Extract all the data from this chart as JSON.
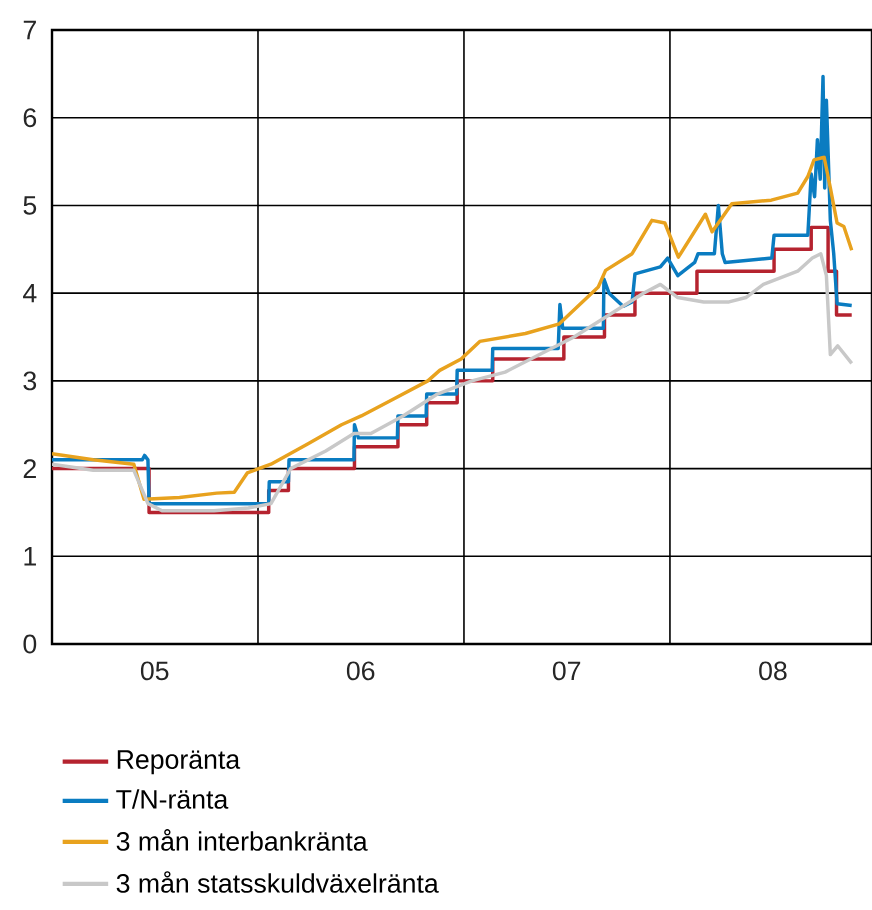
{
  "chart_data": {
    "type": "line",
    "xlim": [
      "2005-01-01",
      "2008-12-25"
    ],
    "xticks": [
      {
        "value": "2006-01-01",
        "label": null
      },
      {
        "value": "2007-01-01",
        "label": null
      },
      {
        "value": "2008-01-01",
        "label": null
      },
      {
        "value": "2005-07-02",
        "label": "05"
      },
      {
        "value": "2006-07-02",
        "label": "06"
      },
      {
        "value": "2007-07-02",
        "label": "07"
      },
      {
        "value": "2008-07-02",
        "label": "08"
      }
    ],
    "ylim": [
      0,
      7
    ],
    "yticks": [
      0,
      1,
      2,
      3,
      4,
      5,
      6,
      7
    ],
    "grid": true,
    "legend": "bottom",
    "marker": "none",
    "line_style": "solid",
    "series": [
      {
        "name": "Reporänta",
        "type": "step",
        "color": "#b5232f",
        "x": [
          "2005-01-01",
          "2005-06-22",
          "2006-01-20",
          "2006-02-24",
          "2006-06-21",
          "2006-09-06",
          "2006-10-27",
          "2006-12-20",
          "2007-02-21",
          "2007-06-27",
          "2007-09-07",
          "2007-10-31",
          "2008-02-18",
          "2008-07-04",
          "2008-09-08",
          "2008-10-08",
          "2008-10-23",
          "2008-11-19"
        ],
        "values": [
          2.0,
          1.5,
          1.75,
          2.0,
          2.25,
          2.5,
          2.75,
          3.0,
          3.25,
          3.5,
          3.75,
          4.0,
          4.25,
          4.5,
          4.75,
          4.25,
          3.75,
          3.75
        ]
      },
      {
        "name": "T/N-ränta",
        "color": "#0a7cc1",
        "x": [
          "2005-01-01",
          "2005-06-10",
          "2005-06-14",
          "2005-06-20",
          "2005-06-22",
          "2006-01-20",
          "2006-01-21",
          "2006-02-24",
          "2006-02-25",
          "2006-06-20",
          "2006-06-21",
          "2006-06-28",
          "2006-09-05",
          "2006-09-06",
          "2006-10-26",
          "2006-10-27",
          "2006-12-19",
          "2006-12-20",
          "2007-02-20",
          "2007-02-21",
          "2007-06-17",
          "2007-06-20",
          "2007-06-25",
          "2007-09-05",
          "2007-09-06",
          "2007-09-15",
          "2007-10-10",
          "2007-10-26",
          "2007-10-31",
          "2007-12-15",
          "2007-12-28",
          "2008-01-15",
          "2008-02-14",
          "2008-02-20",
          "2008-03-20",
          "2008-03-27",
          "2008-04-03",
          "2008-04-08",
          "2008-06-30",
          "2008-07-04",
          "2008-09-02",
          "2008-09-08",
          "2008-09-14",
          "2008-09-19",
          "2008-09-24",
          "2008-09-29",
          "2008-10-02",
          "2008-10-05",
          "2008-10-12",
          "2008-10-18",
          "2008-10-24",
          "2008-11-19"
        ],
        "values": [
          2.1,
          2.1,
          2.15,
          2.1,
          1.6,
          1.6,
          1.85,
          1.85,
          2.1,
          2.1,
          2.5,
          2.35,
          2.35,
          2.6,
          2.6,
          2.85,
          2.85,
          3.12,
          3.12,
          3.37,
          3.37,
          3.87,
          3.6,
          3.6,
          4.16,
          4.0,
          3.85,
          3.9,
          4.22,
          4.3,
          4.4,
          4.2,
          4.35,
          4.45,
          4.45,
          5.0,
          4.45,
          4.35,
          4.4,
          4.66,
          4.66,
          5.36,
          5.1,
          5.75,
          5.3,
          6.47,
          5.2,
          6.2,
          4.83,
          4.45,
          3.88,
          3.86
        ]
      },
      {
        "name": "3 mån interbankränta",
        "color": "#e8a21e",
        "x": [
          "2005-01-01",
          "2005-03-15",
          "2005-05-26",
          "2005-06-13",
          "2005-08-15",
          "2005-10-20",
          "2005-11-20",
          "2005-12-13",
          "2006-01-24",
          "2006-03-30",
          "2006-05-29",
          "2006-07-03",
          "2006-08-31",
          "2006-10-29",
          "2006-11-19",
          "2006-12-27",
          "2007-01-29",
          "2007-04-20",
          "2007-06-19",
          "2007-08-27",
          "2007-09-09",
          "2007-10-26",
          "2007-11-30",
          "2007-12-23",
          "2008-01-16",
          "2008-03-04",
          "2008-03-16",
          "2008-04-20",
          "2008-06-29",
          "2008-08-15",
          "2008-09-02",
          "2008-09-13",
          "2008-10-01",
          "2008-10-12",
          "2008-10-24",
          "2008-11-05",
          "2008-11-19"
        ],
        "values": [
          2.17,
          2.1,
          2.05,
          1.65,
          1.67,
          1.72,
          1.73,
          1.95,
          2.05,
          2.28,
          2.5,
          2.6,
          2.8,
          3.0,
          3.12,
          3.25,
          3.45,
          3.54,
          3.65,
          4.07,
          4.26,
          4.45,
          4.83,
          4.8,
          4.41,
          4.9,
          4.7,
          5.02,
          5.06,
          5.14,
          5.33,
          5.52,
          5.55,
          5.2,
          4.8,
          4.76,
          4.49
        ]
      },
      {
        "name": "3 mån statsskuldväxelränta",
        "color": "#c8c8c8",
        "x": [
          "2005-01-01",
          "2005-03-15",
          "2005-05-26",
          "2005-06-20",
          "2005-07-15",
          "2005-10-15",
          "2005-12-15",
          "2006-01-24",
          "2006-02-28",
          "2006-05-01",
          "2006-06-20",
          "2006-07-20",
          "2006-09-15",
          "2006-11-15",
          "2007-01-15",
          "2007-03-15",
          "2007-05-15",
          "2007-07-15",
          "2007-09-15",
          "2007-11-15",
          "2007-12-15",
          "2008-01-15",
          "2008-03-01",
          "2008-04-15",
          "2008-05-15",
          "2008-06-15",
          "2008-08-15",
          "2008-09-10",
          "2008-09-25",
          "2008-10-05",
          "2008-10-12",
          "2008-10-25",
          "2008-11-19"
        ],
        "values": [
          2.05,
          1.98,
          1.98,
          1.6,
          1.52,
          1.52,
          1.55,
          1.6,
          2.0,
          2.2,
          2.4,
          2.4,
          2.6,
          2.85,
          3.0,
          3.1,
          3.3,
          3.5,
          3.75,
          4.0,
          4.1,
          3.95,
          3.9,
          3.9,
          3.95,
          4.1,
          4.25,
          4.4,
          4.45,
          4.2,
          3.3,
          3.4,
          3.2
        ]
      }
    ]
  }
}
